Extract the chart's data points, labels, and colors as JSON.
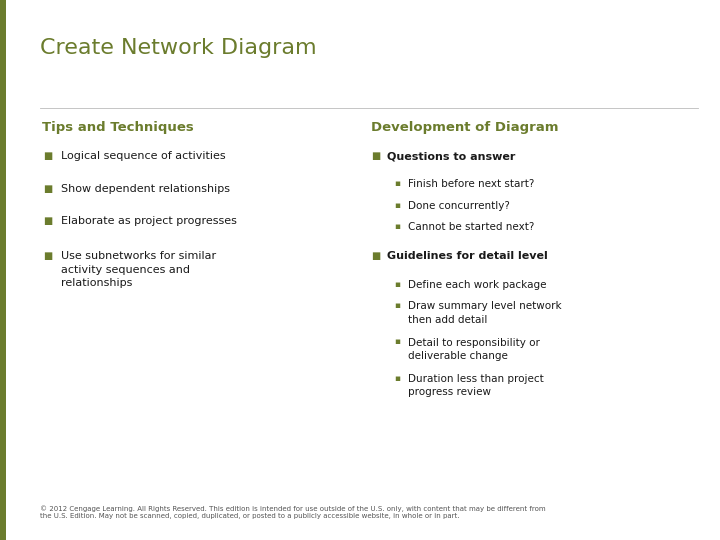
{
  "title": "Create Network Diagram",
  "title_color": "#6b7c2d",
  "title_fontsize": 16,
  "bg_color": "#ffffff",
  "left_bar_color": "#6b7c2d",
  "section_header_color": "#6b7c2d",
  "section_header_fontsize": 9.5,
  "bullet_color": "#6b7c2d",
  "text_color": "#1a1a1a",
  "bullet_fontsize": 8,
  "sub_bullet_fontsize": 7.5,
  "left_header": "Tips and Techniques",
  "right_header": "Development of Diagram",
  "left_bullets": [
    "Logical sequence of activities",
    "Show dependent relationships",
    "Elaborate as project progresses",
    "Use subnetworks for similar\nactivity sequences and\nrelationships"
  ],
  "right_section1_header": "Questions to answer",
  "right_section1_subs": [
    "Finish before next start?",
    "Done concurrently?",
    "Cannot be started next?"
  ],
  "right_section2_header": "Guidelines for detail level",
  "right_section2_subs": [
    "Define each work package",
    "Draw summary level network\nthen add detail",
    "Detail to responsibility or\ndeliverable change",
    "Duration less than project\nprogress review"
  ],
  "footer": "© 2012 Cengage Learning. All Rights Reserved. This edition is intended for use outside of the U.S. only, with content that may be different from\nthe U.S. Edition. May not be scanned, copied, duplicated, or posted to a publicly accessible website, in whole or in part.",
  "footer_fontsize": 5.0
}
